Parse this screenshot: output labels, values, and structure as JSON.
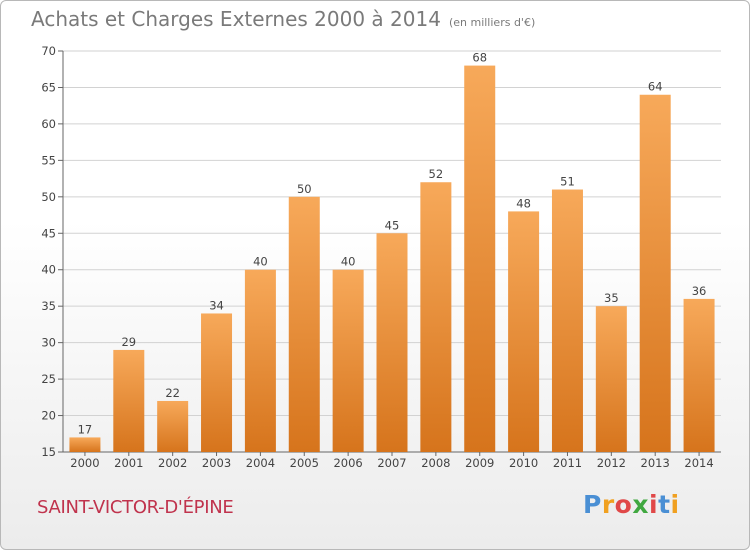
{
  "title": "Achats et Charges Externes 2000 à 2014",
  "subtitle": "(en milliers d'€)",
  "commune": "SAINT-VICTOR-D'ÉPINE",
  "logo": {
    "letters": [
      "P",
      "r",
      "o",
      "x",
      "i",
      "t",
      "i"
    ],
    "colors": [
      "#4a8fd4",
      "#f0a020",
      "#e04848",
      "#40a840",
      "#e04848",
      "#4a8fd4",
      "#f0a020"
    ]
  },
  "colors": {
    "bar_top": "#f7a95a",
    "bar_bottom": "#d6741c",
    "commune": "#c0334d"
  },
  "chart_data": {
    "type": "bar",
    "title": "Achats et Charges Externes 2000 à 2014",
    "xlabel": "",
    "ylabel": "",
    "categories": [
      "2000",
      "2001",
      "2002",
      "2003",
      "2004",
      "2005",
      "2006",
      "2007",
      "2008",
      "2009",
      "2010",
      "2011",
      "2012",
      "2013",
      "2014"
    ],
    "values": [
      17,
      29,
      22,
      34,
      40,
      50,
      40,
      45,
      52,
      68,
      48,
      51,
      35,
      64,
      36
    ],
    "ylim": [
      15,
      70
    ],
    "yticks": [
      15,
      20,
      25,
      30,
      35,
      40,
      45,
      50,
      55,
      60,
      65,
      70
    ],
    "grid": true
  }
}
